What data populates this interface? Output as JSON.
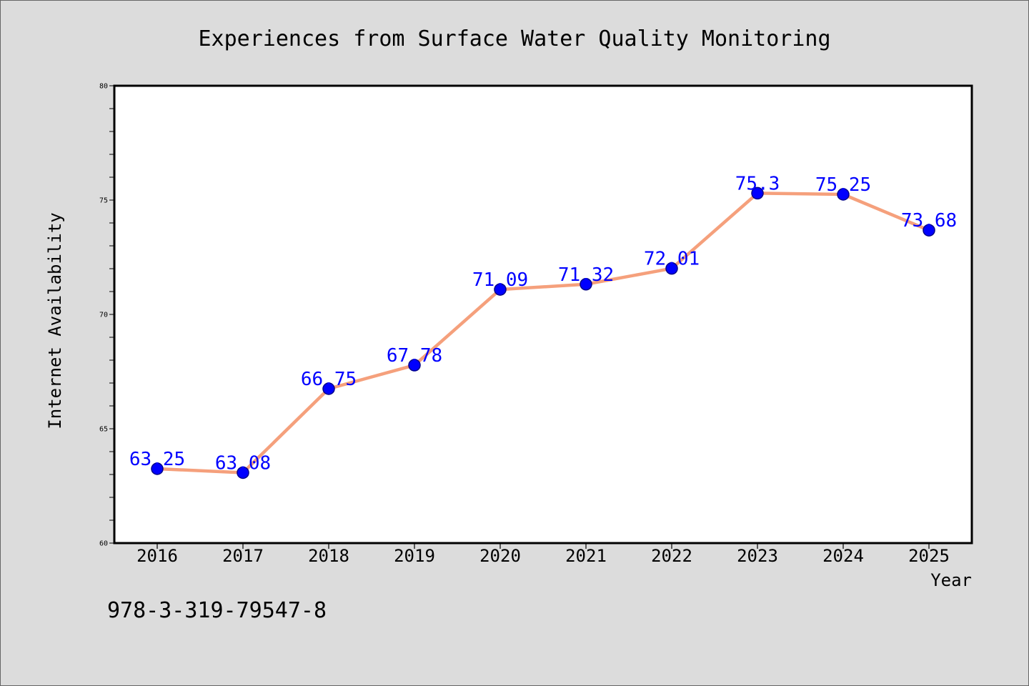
{
  "chart_data": {
    "type": "line",
    "title": "Experiences from Surface Water Quality Monitoring",
    "xlabel": "Year",
    "ylabel": "Internet Availability",
    "categories": [
      "2016",
      "2017",
      "2018",
      "2019",
      "2020",
      "2021",
      "2022",
      "2023",
      "2024",
      "2025"
    ],
    "series": [
      {
        "values": [
          63.25,
          63.08,
          66.75,
          67.78,
          71.09,
          71.32,
          72.01,
          75.3,
          75.25,
          73.68
        ],
        "line_color": "#f5a07c",
        "marker_color": "#0000ff",
        "marker_edge_color": "#00008b",
        "label_color": "#0000ff"
      }
    ],
    "ylim": [
      60,
      80
    ],
    "yticks": [
      60,
      65,
      70,
      75,
      80
    ],
    "data_labels": true,
    "grid": false
  },
  "annotation": {
    "text": "978-3-319-79547-8"
  },
  "colors": {
    "figure_background": "#dcdcdc",
    "plot_background": "#ffffff",
    "axis": "#000000",
    "figure_border": "#666666"
  }
}
